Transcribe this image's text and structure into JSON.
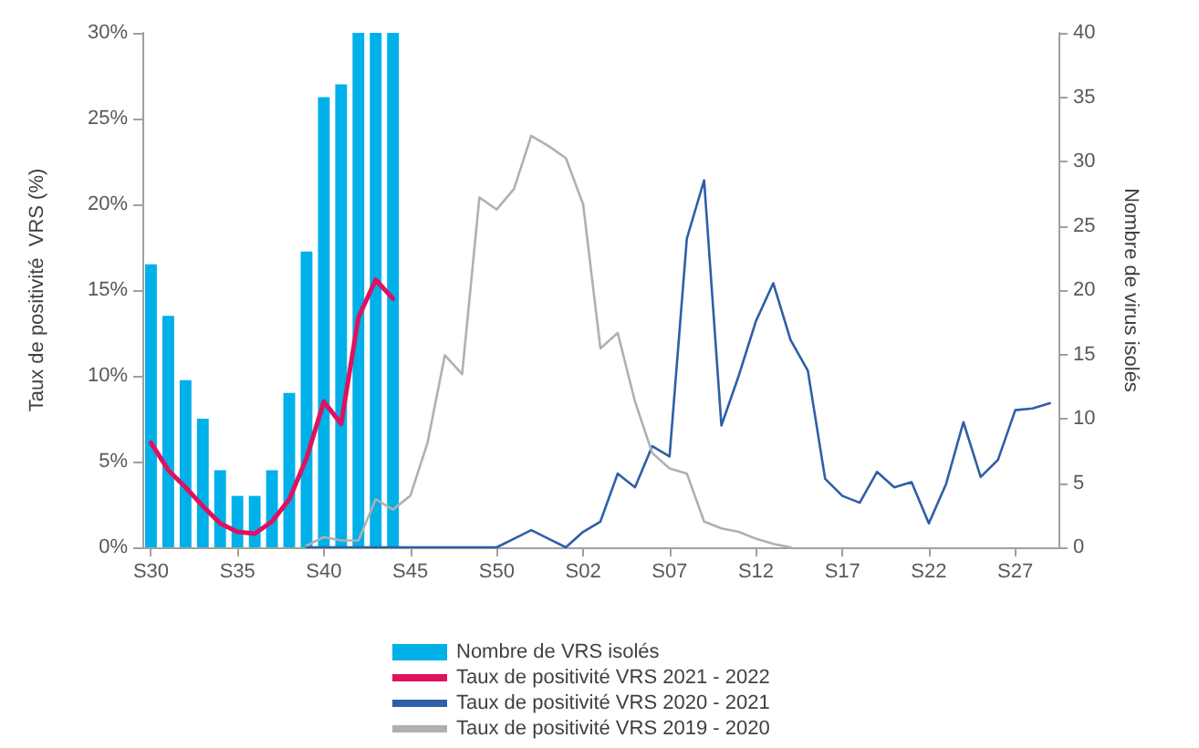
{
  "chart_data": {
    "type": "line",
    "categories": [
      "S30",
      null,
      null,
      null,
      null,
      "S35",
      null,
      null,
      null,
      null,
      "S40",
      null,
      null,
      null,
      null,
      "S45",
      null,
      null,
      null,
      null,
      "S50",
      null,
      null,
      null,
      null,
      "S02",
      null,
      null,
      null,
      null,
      "S07",
      null,
      null,
      null,
      null,
      "S12",
      null,
      null,
      null,
      null,
      "S17",
      null,
      null,
      null,
      null,
      "S22",
      null,
      null,
      null,
      null,
      "S27",
      null,
      null
    ],
    "ylabel": "Taux de positivité  VRS (%)",
    "y2label": "Nombre de virus isolés",
    "ylim": [
      0,
      30
    ],
    "yticks": [
      {
        "value": 0,
        "label": "0%"
      },
      {
        "value": 5,
        "label": "5%"
      },
      {
        "value": 10,
        "label": "10%"
      },
      {
        "value": 15,
        "label": "15%"
      },
      {
        "value": 20,
        "label": "20%"
      },
      {
        "value": 25,
        "label": "25%"
      },
      {
        "value": 30,
        "label": "30%"
      }
    ],
    "y2lim": [
      0,
      40
    ],
    "y2ticks": [
      0,
      5,
      10,
      15,
      20,
      25,
      30,
      35,
      40
    ],
    "grid": false,
    "legend": "bottom",
    "marker": "none",
    "line_style": "solid",
    "series": [
      {
        "name": "Nombre de VRS isolés",
        "type": "bar",
        "axis": "y2",
        "color": "#00b0e8",
        "values": [
          22,
          18,
          13,
          10,
          6,
          4,
          4,
          6,
          12,
          23,
          35,
          36,
          40,
          40,
          40,
          null,
          null,
          null,
          null,
          null,
          null,
          null,
          null,
          null,
          null,
          null,
          null,
          null,
          null,
          null,
          null,
          null,
          null,
          null,
          null,
          null,
          null,
          null,
          null,
          null,
          null,
          null,
          null,
          null,
          null,
          null,
          null,
          null,
          null,
          null,
          null,
          null,
          null
        ]
      },
      {
        "name": "Taux de positivité VRS 2021 - 2022",
        "color": "#e0115f",
        "values": [
          6.1,
          4.5,
          3.5,
          2.4,
          1.4,
          0.9,
          0.8,
          1.5,
          2.8,
          5.2,
          8.5,
          7.2,
          13.4,
          15.6,
          14.5,
          null,
          null,
          null,
          null,
          null,
          null,
          null,
          null,
          null,
          null,
          null,
          null,
          null,
          null,
          null,
          null,
          null,
          null,
          null,
          null,
          null,
          null,
          null,
          null,
          null,
          null,
          null,
          null,
          null,
          null,
          null,
          null,
          null,
          null,
          null,
          null,
          null,
          null
        ]
      },
      {
        "name": "Taux de positivité VRS 2020 - 2021",
        "color": "#2e5fa8",
        "values": [
          null,
          null,
          null,
          null,
          null,
          null,
          null,
          null,
          null,
          0,
          0,
          0,
          0,
          0,
          0,
          0,
          0,
          0,
          0,
          0,
          0,
          0.5,
          1.0,
          0.5,
          0,
          0.9,
          1.5,
          4.3,
          3.5,
          5.9,
          5.3,
          18.0,
          21.4,
          7.1,
          10.0,
          13.2,
          15.4,
          12.1,
          10.3,
          4.0,
          3.0,
          2.6,
          4.4,
          3.5,
          3.8,
          1.4,
          3.7,
          7.3,
          4.1,
          5.1,
          8.0,
          8.1,
          8.4
        ]
      },
      {
        "name": "Taux de positivité VRS 2019 - 2020",
        "color": "#b0b0b0",
        "values": [
          null,
          null,
          null,
          null,
          null,
          null,
          null,
          null,
          null,
          0.1,
          0.6,
          0.4,
          0.4,
          2.8,
          2.2,
          3.0,
          6.1,
          11.2,
          10.1,
          20.4,
          19.7,
          20.9,
          24.0,
          23.4,
          22.7,
          20.0,
          11.6,
          12.5,
          8.5,
          5.5,
          4.6,
          4.3,
          1.5,
          1.1,
          0.9,
          0.5,
          0.2,
          0,
          null,
          null,
          null,
          null,
          null,
          null,
          null,
          null,
          null,
          null,
          null,
          null,
          null,
          null,
          null
        ]
      }
    ]
  }
}
